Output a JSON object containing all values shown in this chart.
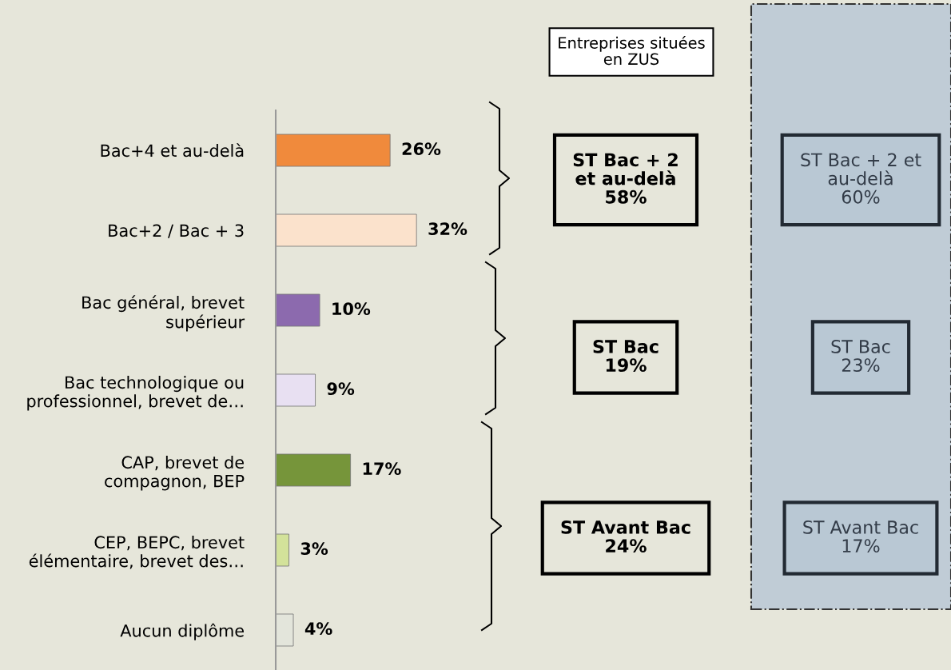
{
  "chart_data": {
    "type": "bar",
    "orientation": "horizontal",
    "categories": [
      "Bac+4 et au-delà",
      "Bac+2 / Bac + 3",
      "Bac général, brevet\nsupérieur",
      "Bac technologique ou\nprofessionnel, brevet de…",
      "CAP, brevet de\ncompagnon, BEP",
      "CEP, BEPC, brevet\nélémentaire, brevet des…",
      "Aucun diplôme"
    ],
    "values": [
      26,
      32,
      10,
      9,
      17,
      3,
      4
    ],
    "colors": [
      "#f08a3c",
      "#fbe2cc",
      "#8c6aae",
      "#e8e0f2",
      "#76953a",
      "#d3e29a",
      "#e3e5db"
    ],
    "value_labels": [
      "26%",
      "32%",
      "10%",
      "9%",
      "17%",
      "3%",
      "4%"
    ],
    "tick_labels": "y",
    "annotations": [
      "Entreprises situées\nen ZUS",
      "ST Bac + 2\net au-delà\n58%",
      "ST Bac\n19%",
      "ST Avant Bac\n24%",
      "ST Bac + 2 et\nau-delà\n60%",
      "ST Bac\n23%",
      "ST Avant Bac\n17%"
    ]
  }
}
